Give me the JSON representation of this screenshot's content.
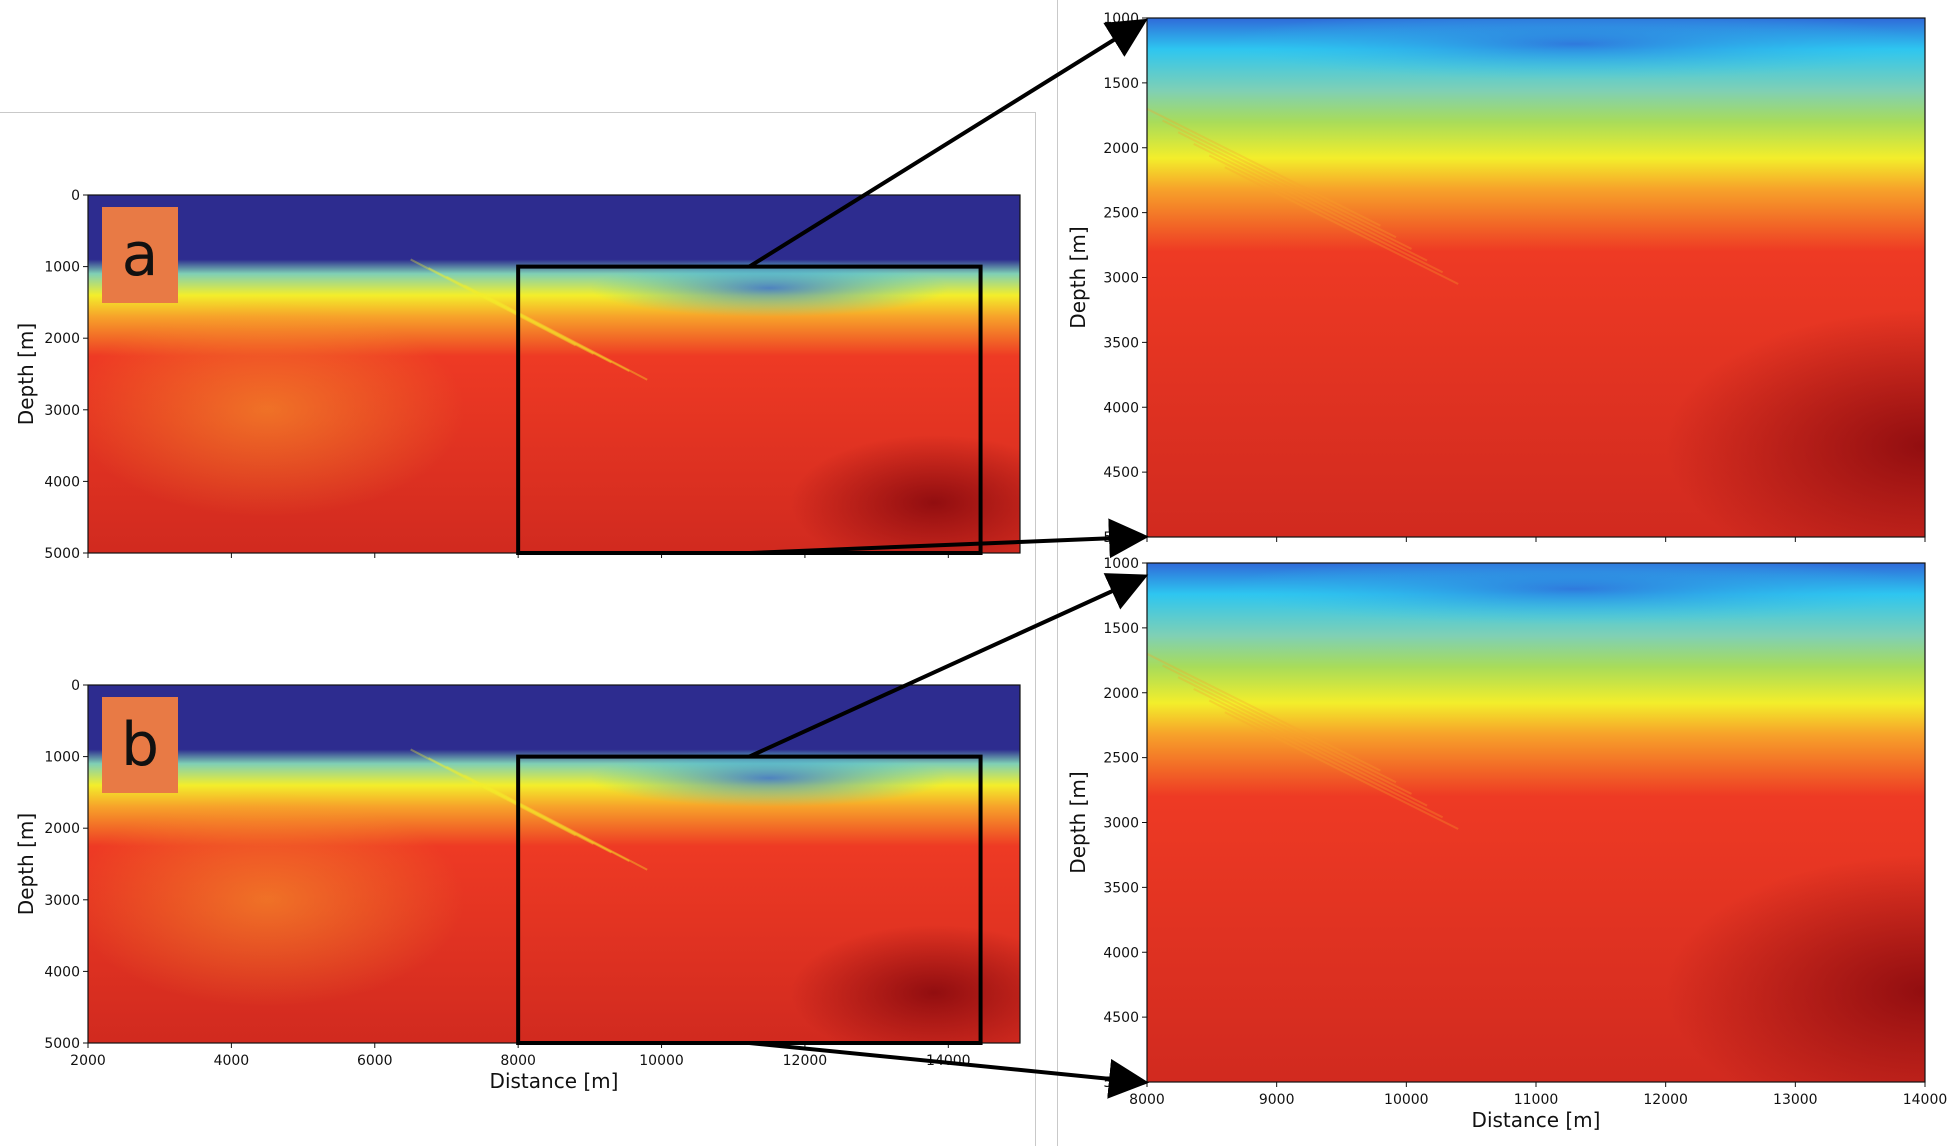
{
  "colors": {
    "label_box": "#e87a45",
    "zoom_box": "#000000",
    "colormap": [
      "#2d2c8f",
      "#2f6ad9",
      "#2ec6f0",
      "#7fd0b5",
      "#a8dc5a",
      "#f3ee2b",
      "#f7a22a",
      "#ee3a24",
      "#d12a1f",
      "#8e0c0f"
    ]
  },
  "chart_data": [
    {
      "id": "panel-a-full",
      "type": "heatmap",
      "panel_label": "a",
      "xlim": [
        2000,
        15000
      ],
      "ylim": [
        0,
        5000
      ],
      "y_inverted": true,
      "xlabel": "",
      "ylabel": "Depth [m]",
      "x_ticks": [],
      "y_ticks": [
        "0",
        "1000",
        "2000",
        "3000",
        "4000",
        "5000"
      ],
      "zoom_window": {
        "x": [
          8000,
          14450
        ],
        "y": [
          1000,
          5000
        ]
      }
    },
    {
      "id": "panel-b-full",
      "type": "heatmap",
      "panel_label": "b",
      "xlim": [
        2000,
        15000
      ],
      "ylim": [
        0,
        5000
      ],
      "y_inverted": true,
      "xlabel": "Distance [m]",
      "ylabel": "Depth [m]",
      "x_ticks": [
        "2000",
        "4000",
        "6000",
        "8000",
        "10000",
        "12000",
        "14000"
      ],
      "y_ticks": [
        "0",
        "1000",
        "2000",
        "3000",
        "4000",
        "5000"
      ],
      "zoom_window": {
        "x": [
          8000,
          14450
        ],
        "y": [
          1000,
          5000
        ]
      }
    },
    {
      "id": "panel-a-zoom",
      "type": "heatmap",
      "xlim": [
        8000,
        14000
      ],
      "ylim": [
        1000,
        5000
      ],
      "y_inverted": true,
      "xlabel": "",
      "ylabel": "Depth [m]",
      "x_ticks": [],
      "y_ticks": [
        "1000",
        "1500",
        "2000",
        "2500",
        "3000",
        "3500",
        "4000",
        "4500",
        "5000"
      ]
    },
    {
      "id": "panel-b-zoom",
      "type": "heatmap",
      "xlim": [
        8000,
        14000
      ],
      "ylim": [
        1000,
        5000
      ],
      "y_inverted": true,
      "xlabel": "Distance [m]",
      "ylabel": "Depth [m]",
      "x_ticks": [
        "8000",
        "9000",
        "10000",
        "11000",
        "12000",
        "13000",
        "14000"
      ],
      "y_ticks": [
        "1000",
        "1500",
        "2000",
        "2500",
        "3000",
        "3500",
        "4000",
        "4500",
        "5000"
      ]
    }
  ]
}
